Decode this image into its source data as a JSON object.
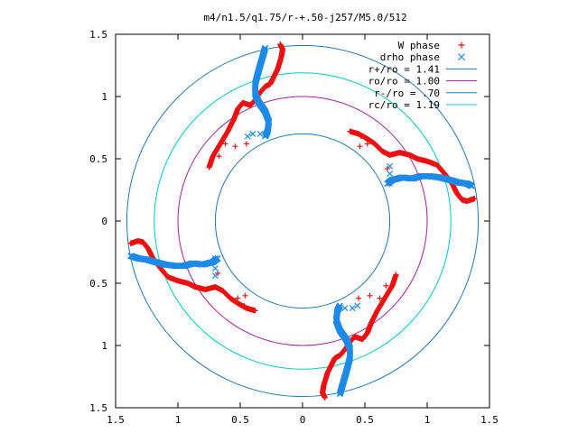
{
  "chart_data": {
    "type": "scatter",
    "title": "m4/n1.5/q1.75/r-+.50-j257/M5.0/512",
    "x_ticks": [
      "1.5",
      "1",
      "0.5",
      "0",
      "0.5",
      "1",
      "1.5"
    ],
    "x_tick_values": [
      -1.5,
      -1,
      -0.5,
      0,
      0.5,
      1,
      1.5
    ],
    "y_ticks": [
      "1.5",
      "1",
      "0.5",
      "0",
      "0.5",
      "1",
      "1.5"
    ],
    "y_tick_values": [
      1.5,
      1,
      0.5,
      0,
      -0.5,
      -1,
      -1.5
    ],
    "xlim": [
      -1.5,
      1.5
    ],
    "ylim": [
      -1.5,
      1.5
    ],
    "grid": false,
    "legend_position": "top-right",
    "circles": [
      {
        "label": "r+/ro = 1.41",
        "radius": 1.41,
        "color": "#1f77b4"
      },
      {
        "label": "ro/ro = 1.00",
        "radius": 1.0,
        "color": "#a020a0"
      },
      {
        "label": "r-/ro = .70",
        "radius": 0.7,
        "color": "#1f77b4"
      },
      {
        "label": "rc/ro = 1.19",
        "radius": 1.19,
        "color": "#00c8c8"
      }
    ],
    "series": [
      {
        "name": "W phase",
        "marker": "+",
        "color": "#ee1111",
        "arms": [
          [
            [
              -0.75,
              0.43
            ],
            [
              -0.72,
              0.52
            ],
            [
              -0.66,
              0.62
            ],
            [
              -0.6,
              0.72
            ],
            [
              -0.55,
              0.82
            ],
            [
              -0.52,
              0.9
            ],
            [
              -0.48,
              0.95
            ],
            [
              -0.42,
              0.93
            ],
            [
              -0.38,
              0.97
            ],
            [
              -0.35,
              1.02
            ],
            [
              -0.3,
              1.08
            ],
            [
              -0.26,
              1.1
            ],
            [
              -0.24,
              1.14
            ],
            [
              -0.2,
              1.22
            ],
            [
              -0.17,
              1.32
            ],
            [
              -0.16,
              1.38
            ],
            [
              -0.18,
              1.42
            ]
          ],
          [
            [
              0.38,
              0.72
            ],
            [
              0.45,
              0.7
            ],
            [
              0.52,
              0.66
            ],
            [
              0.58,
              0.62
            ],
            [
              0.64,
              0.56
            ],
            [
              0.7,
              0.53
            ],
            [
              0.78,
              0.55
            ],
            [
              0.86,
              0.53
            ],
            [
              0.92,
              0.5
            ],
            [
              1.0,
              0.48
            ],
            [
              1.08,
              0.45
            ],
            [
              1.14,
              0.38
            ],
            [
              1.2,
              0.3
            ],
            [
              1.24,
              0.22
            ],
            [
              1.28,
              0.17
            ],
            [
              1.32,
              0.16
            ],
            [
              1.38,
              0.18
            ]
          ],
          [
            [
              0.75,
              -0.43
            ],
            [
              0.72,
              -0.52
            ],
            [
              0.66,
              -0.62
            ],
            [
              0.6,
              -0.72
            ],
            [
              0.55,
              -0.82
            ],
            [
              0.52,
              -0.9
            ],
            [
              0.48,
              -0.95
            ],
            [
              0.42,
              -0.93
            ],
            [
              0.38,
              -0.97
            ],
            [
              0.35,
              -1.02
            ],
            [
              0.3,
              -1.08
            ],
            [
              0.26,
              -1.1
            ],
            [
              0.24,
              -1.14
            ],
            [
              0.2,
              -1.22
            ],
            [
              0.17,
              -1.32
            ],
            [
              0.16,
              -1.38
            ],
            [
              0.18,
              -1.42
            ]
          ],
          [
            [
              -0.38,
              -0.72
            ],
            [
              -0.45,
              -0.7
            ],
            [
              -0.52,
              -0.66
            ],
            [
              -0.58,
              -0.62
            ],
            [
              -0.64,
              -0.56
            ],
            [
              -0.7,
              -0.53
            ],
            [
              -0.78,
              -0.55
            ],
            [
              -0.86,
              -0.53
            ],
            [
              -0.92,
              -0.5
            ],
            [
              -1.0,
              -0.48
            ],
            [
              -1.08,
              -0.45
            ],
            [
              -1.14,
              -0.38
            ],
            [
              -1.2,
              -0.3
            ],
            [
              -1.24,
              -0.22
            ],
            [
              -1.28,
              -0.17
            ],
            [
              -1.32,
              -0.16
            ],
            [
              -1.38,
              -0.18
            ]
          ]
        ],
        "scatter": [
          [
            -0.62,
            0.62
          ],
          [
            -0.67,
            0.52
          ],
          [
            -0.54,
            0.6
          ],
          [
            -0.45,
            0.62
          ],
          [
            0.47,
            0.68
          ],
          [
            0.52,
            0.62
          ],
          [
            0.46,
            0.6
          ],
          [
            0.68,
            0.42
          ],
          [
            0.62,
            -0.62
          ],
          [
            0.67,
            -0.52
          ],
          [
            0.54,
            -0.6
          ],
          [
            0.45,
            -0.62
          ],
          [
            -0.47,
            -0.68
          ],
          [
            -0.52,
            -0.62
          ],
          [
            -0.46,
            -0.6
          ],
          [
            -0.68,
            -0.42
          ]
        ]
      },
      {
        "name": "drho phase",
        "marker": "x",
        "color": "#1e8ae8",
        "arms": [
          [
            [
              -0.3,
              0.68
            ],
            [
              -0.28,
              0.72
            ],
            [
              -0.27,
              0.8
            ],
            [
              -0.3,
              0.88
            ],
            [
              -0.35,
              0.95
            ],
            [
              -0.38,
              1.02
            ],
            [
              -0.38,
              1.1
            ],
            [
              -0.36,
              1.18
            ],
            [
              -0.34,
              1.25
            ],
            [
              -0.32,
              1.32
            ],
            [
              -0.3,
              1.39
            ]
          ],
          [
            [
              0.68,
              0.3
            ],
            [
              0.72,
              0.33
            ],
            [
              0.8,
              0.35
            ],
            [
              0.88,
              0.34
            ],
            [
              0.95,
              0.36
            ],
            [
              1.02,
              0.36
            ],
            [
              1.1,
              0.35
            ],
            [
              1.18,
              0.33
            ],
            [
              1.25,
              0.31
            ],
            [
              1.32,
              0.3
            ],
            [
              1.36,
              0.28
            ]
          ],
          [
            [
              0.3,
              -0.68
            ],
            [
              0.28,
              -0.72
            ],
            [
              0.27,
              -0.8
            ],
            [
              0.3,
              -0.88
            ],
            [
              0.35,
              -0.95
            ],
            [
              0.38,
              -1.02
            ],
            [
              0.38,
              -1.1
            ],
            [
              0.36,
              -1.18
            ],
            [
              0.34,
              -1.25
            ],
            [
              0.32,
              -1.32
            ],
            [
              0.3,
              -1.39
            ]
          ],
          [
            [
              -0.68,
              -0.3
            ],
            [
              -0.72,
              -0.33
            ],
            [
              -0.8,
              -0.35
            ],
            [
              -0.88,
              -0.34
            ],
            [
              -0.95,
              -0.36
            ],
            [
              -1.02,
              -0.36
            ],
            [
              -1.1,
              -0.35
            ],
            [
              -1.18,
              -0.33
            ],
            [
              -1.25,
              -0.31
            ],
            [
              -1.32,
              -0.3
            ],
            [
              -1.38,
              -0.28
            ]
          ]
        ],
        "scatter": [
          [
            -0.44,
            0.68
          ],
          [
            -0.4,
            0.7
          ],
          [
            -0.34,
            0.7
          ],
          [
            0.7,
            0.44
          ],
          [
            0.7,
            0.38
          ],
          [
            0.7,
            0.3
          ],
          [
            0.44,
            -0.68
          ],
          [
            0.4,
            -0.7
          ],
          [
            0.34,
            -0.7
          ],
          [
            -0.7,
            -0.44
          ],
          [
            -0.7,
            -0.38
          ],
          [
            -0.7,
            -0.3
          ]
        ]
      }
    ]
  }
}
